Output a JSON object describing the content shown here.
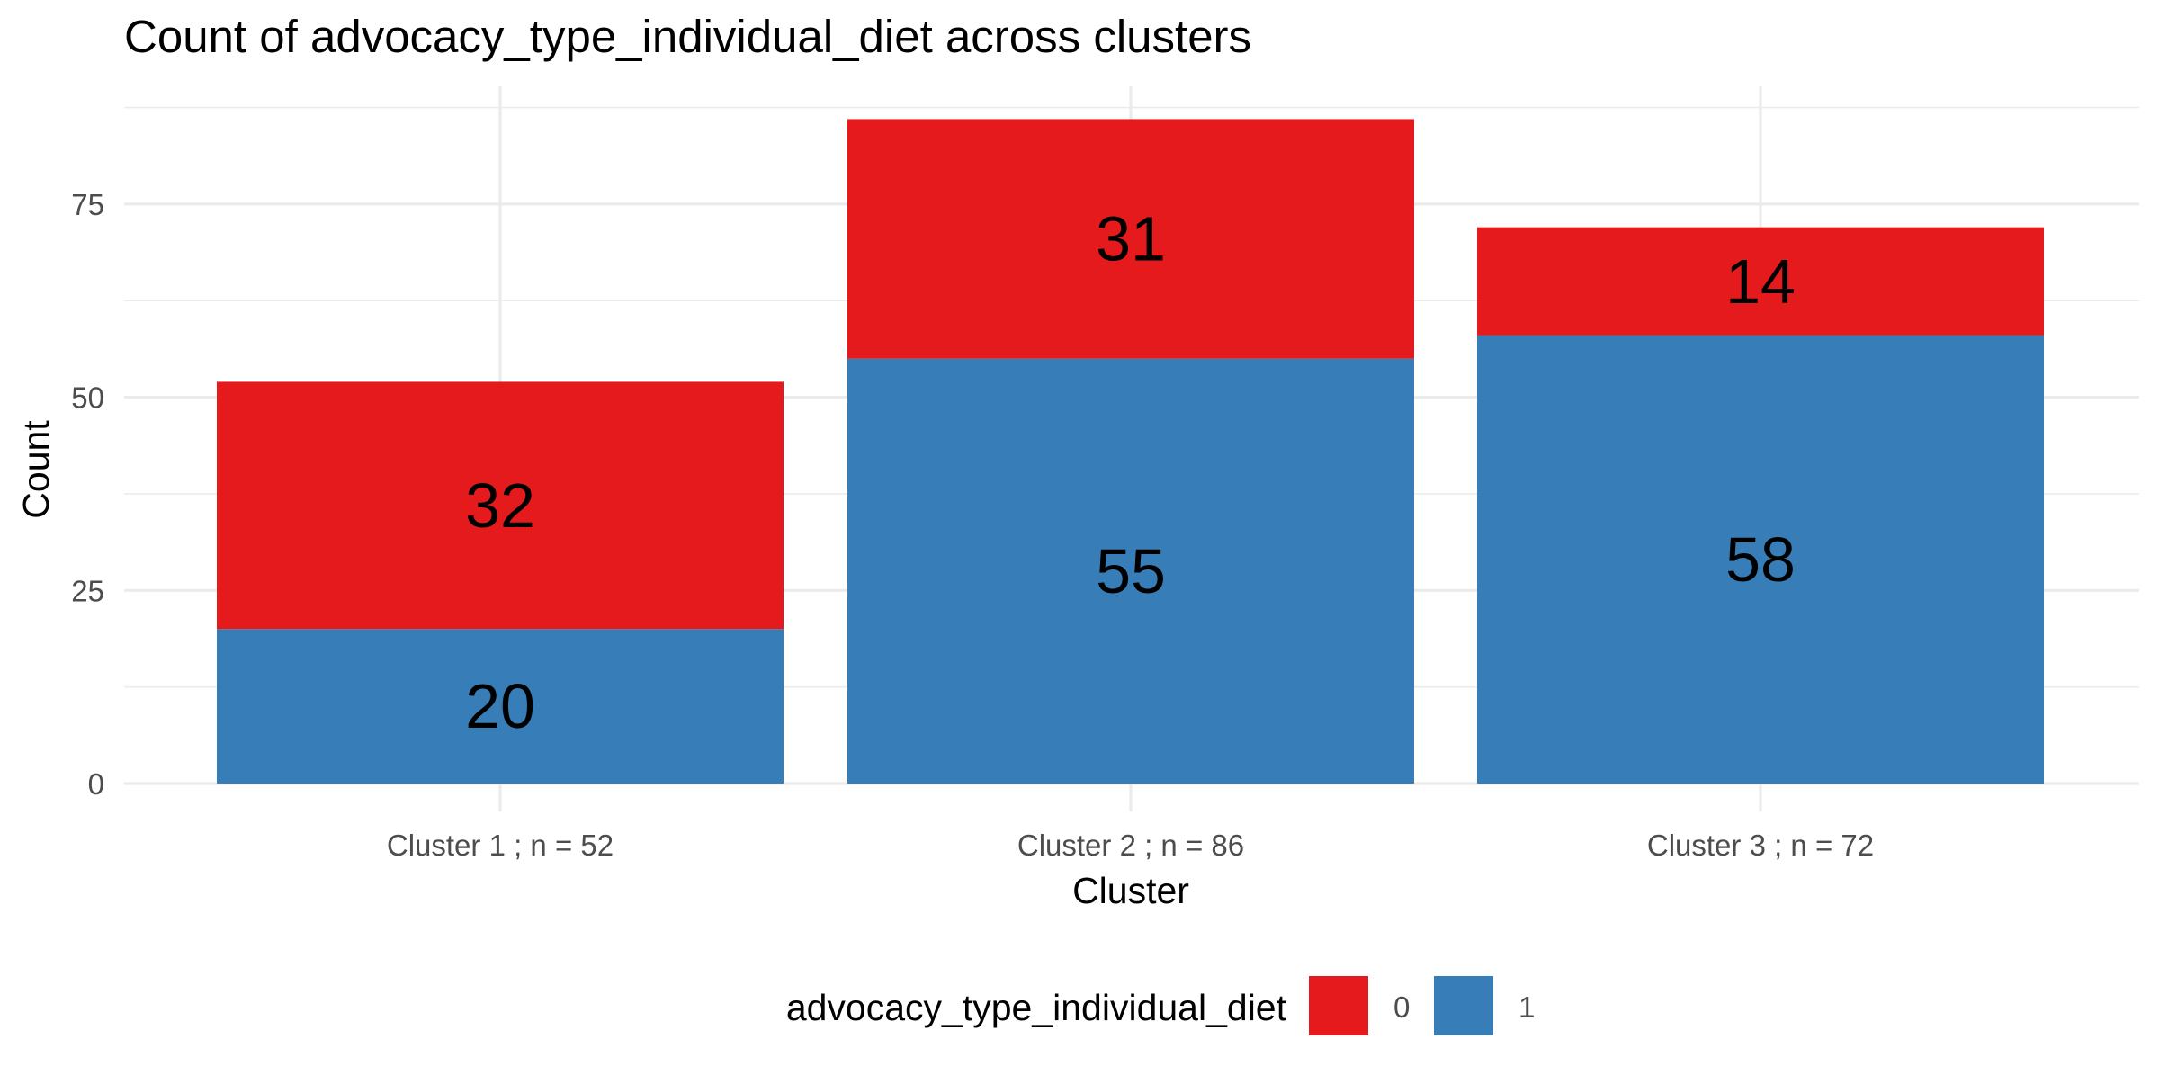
{
  "chart_data": {
    "type": "bar",
    "stacked": true,
    "title": "Count of advocacy_type_individual_diet across clusters",
    "xlabel": "Cluster",
    "ylabel": "Count",
    "categories": [
      "Cluster 1 ; n = 52",
      "Cluster 2 ; n = 86",
      "Cluster 3 ; n = 72"
    ],
    "series": [
      {
        "name": "0",
        "color": "#e41a1c",
        "values": [
          32,
          31,
          14
        ]
      },
      {
        "name": "1",
        "color": "#377eb8",
        "values": [
          20,
          55,
          58
        ]
      }
    ],
    "ylim": [
      0,
      90
    ],
    "yticks": [
      0,
      25,
      50,
      75
    ],
    "grid": true,
    "legend": {
      "title": "advocacy_type_individual_diet",
      "placement": "bottom"
    }
  }
}
